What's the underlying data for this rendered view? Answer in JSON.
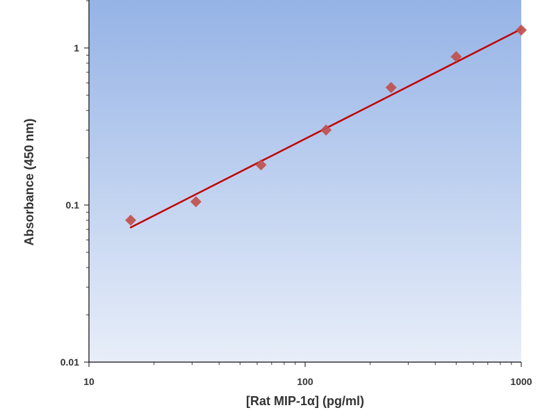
{
  "chart_data": {
    "type": "scatter",
    "scale": {
      "x": "log",
      "y": "log"
    },
    "xlabel": "[Rat MIP-1α] (pg/ml)",
    "ylabel": "Absorbance (450 nm)",
    "xlim": [
      10,
      1000
    ],
    "ylim": [
      0.01,
      2
    ],
    "x_ticks": [
      10,
      100,
      1000
    ],
    "x_tick_labels": [
      "10",
      "100",
      "1000"
    ],
    "y_ticks": [
      0.01,
      0.1,
      1
    ],
    "y_tick_labels": [
      "0.01",
      "0.1",
      "1"
    ],
    "grid": false,
    "series": [
      {
        "type": "scatter",
        "x": [
          15.6,
          31.25,
          62.5,
          125,
          250,
          500,
          1000
        ],
        "y": [
          0.08,
          0.105,
          0.18,
          0.3,
          0.56,
          0.88,
          1.3
        ]
      },
      {
        "type": "line",
        "x": [
          15.6,
          1000
        ],
        "y": [
          0.072,
          1.32
        ]
      }
    ],
    "colors": {
      "marker": "#c0504d",
      "fit_line": "#c00000",
      "plot_bg_top": "#95b3e6",
      "plot_bg_bottom": "#e8eef9",
      "axis": "#333333"
    }
  }
}
